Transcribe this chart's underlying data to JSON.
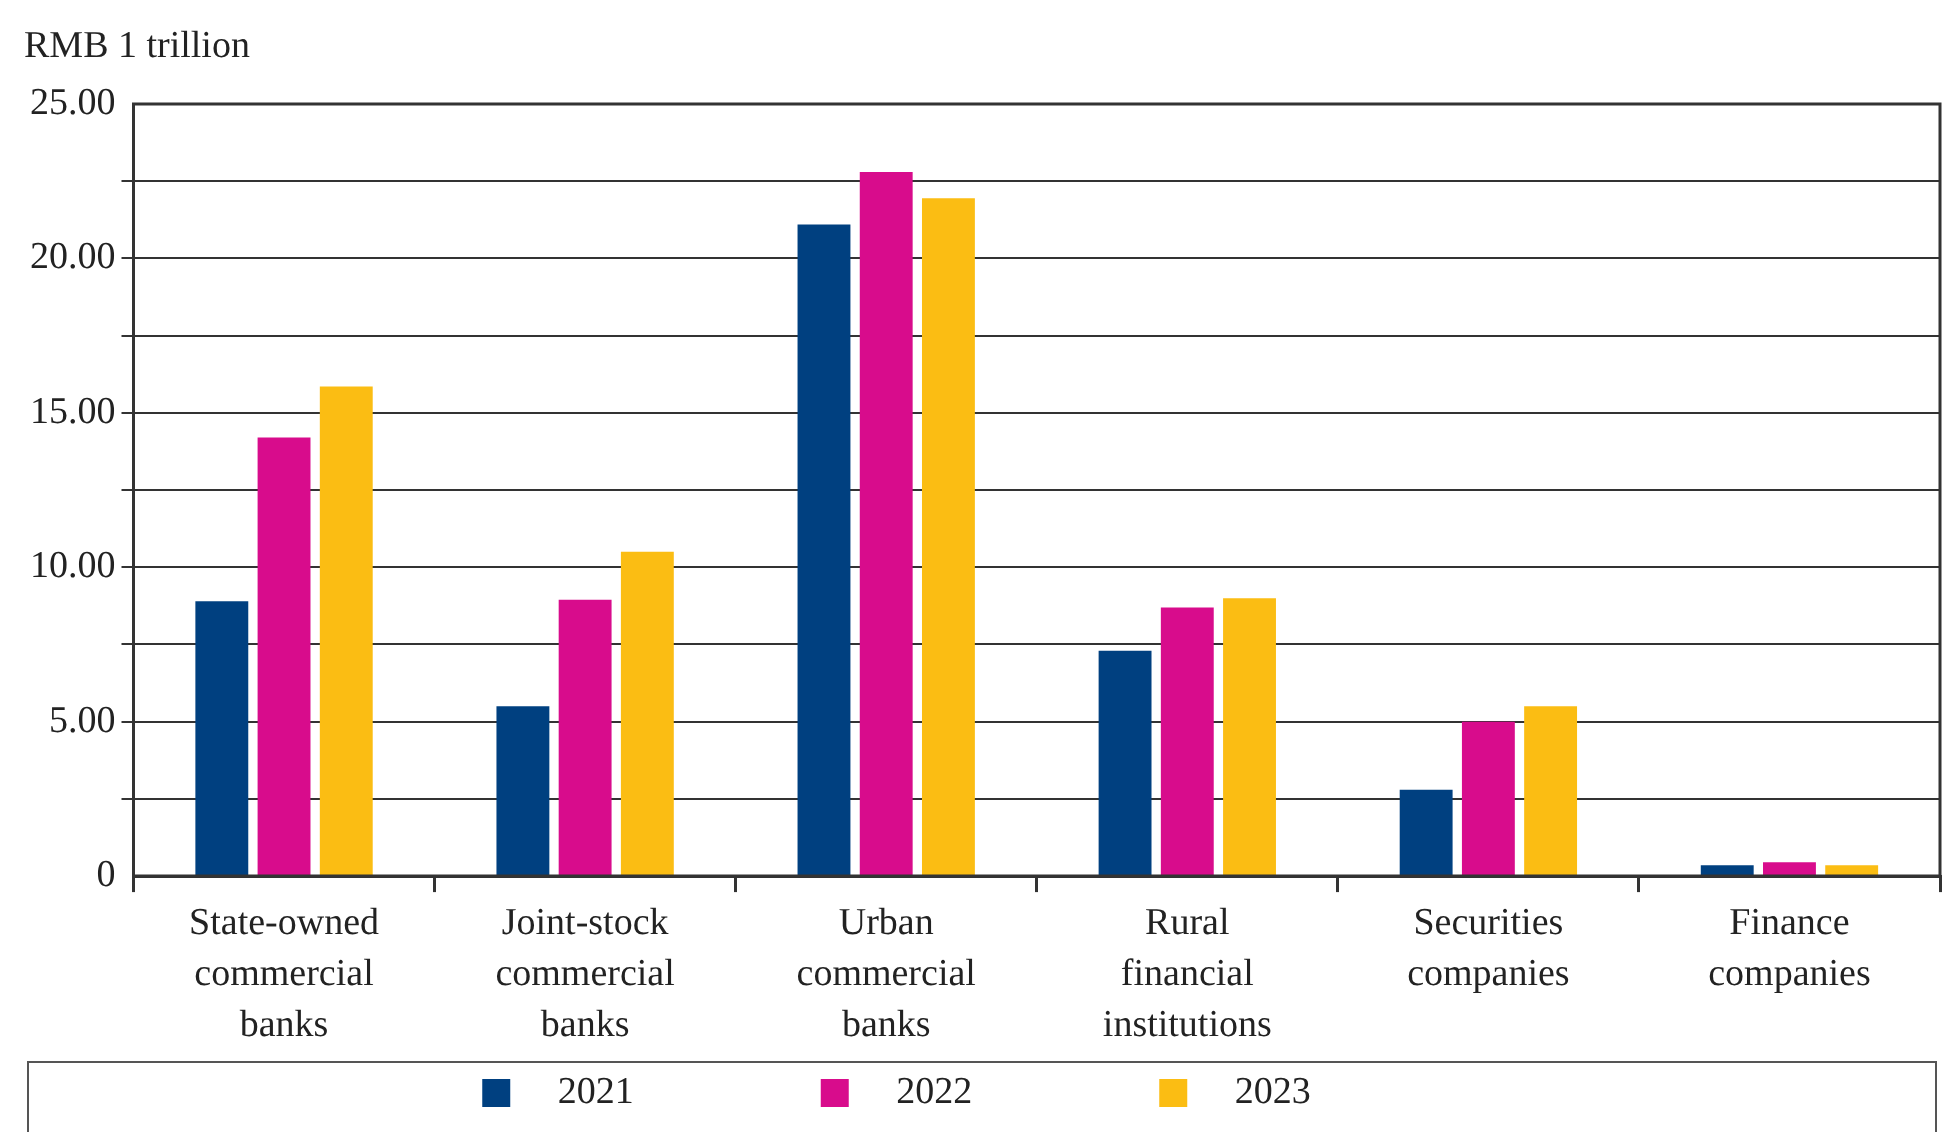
{
  "chart_data": {
    "type": "bar",
    "ylabel": "RMB 1 trillion",
    "categories": [
      "State-owned commercial banks",
      "Joint-stock commercial banks",
      "Urban commercial banks",
      "Rural financial institutions",
      "Securities companies",
      "Finance companies"
    ],
    "series": [
      {
        "name": "2021",
        "color": "#004080",
        "values": [
          8.9,
          5.5,
          21.1,
          7.3,
          2.8,
          0.35
        ]
      },
      {
        "name": "2022",
        "color": "#d80c8c",
        "values": [
          14.2,
          8.95,
          22.8,
          8.7,
          5.0,
          0.45
        ]
      },
      {
        "name": "2023",
        "color": "#fbbd13",
        "values": [
          15.85,
          10.5,
          21.95,
          9.0,
          5.5,
          0.35
        ]
      }
    ],
    "ylim": [
      0,
      25
    ],
    "yticks": [
      0,
      {
        "value": 2.5,
        "label": null
      },
      {
        "value": 5,
        "label": "5.00"
      },
      {
        "value": 7.5,
        "label": null
      },
      {
        "value": 10,
        "label": "10.00"
      },
      {
        "value": 12.5,
        "label": null
      },
      {
        "value": 15,
        "label": "15.00"
      },
      {
        "value": 17.5,
        "label": null
      },
      {
        "value": 20,
        "label": "20.00"
      },
      {
        "value": 22.5,
        "label": null
      },
      {
        "value": 25,
        "label": "25.00"
      }
    ],
    "grid": "y",
    "legend": "bottom"
  }
}
